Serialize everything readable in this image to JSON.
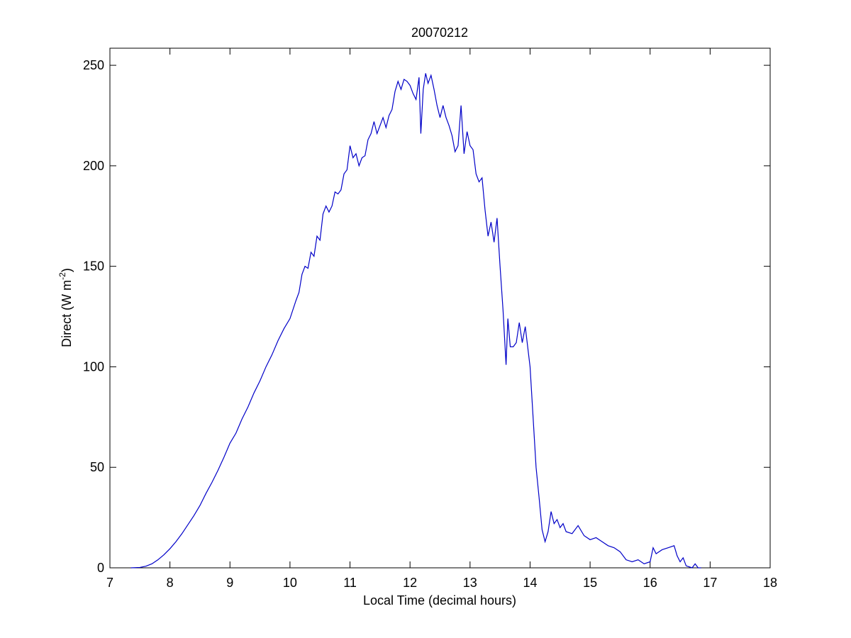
{
  "chart_data": {
    "type": "line",
    "title": "20070212",
    "x_label": "Local Time (decimal hours)",
    "y_label": {
      "text": "Direct (W m",
      "superscript": "-2",
      "suffix": ")"
    },
    "color": "#0000c8",
    "xlim": [
      7,
      18
    ],
    "xticks": [
      7,
      8,
      9,
      10,
      11,
      12,
      13,
      14,
      15,
      16,
      17,
      18
    ],
    "ylim": [
      0,
      258.5
    ],
    "yticks": [
      0,
      50,
      100,
      150,
      200,
      250
    ],
    "x": [
      7.35,
      7.5,
      7.6,
      7.7,
      7.8,
      7.9,
      8.0,
      8.1,
      8.2,
      8.3,
      8.4,
      8.5,
      8.6,
      8.7,
      8.8,
      8.9,
      9.0,
      9.1,
      9.2,
      9.3,
      9.4,
      9.5,
      9.6,
      9.7,
      9.8,
      9.9,
      10.0,
      10.1,
      10.15,
      10.2,
      10.25,
      10.3,
      10.35,
      10.4,
      10.45,
      10.5,
      10.55,
      10.6,
      10.65,
      10.7,
      10.75,
      10.8,
      10.85,
      10.9,
      10.95,
      11.0,
      11.05,
      11.1,
      11.15,
      11.2,
      11.25,
      11.3,
      11.35,
      11.4,
      11.45,
      11.5,
      11.55,
      11.6,
      11.65,
      11.7,
      11.75,
      11.8,
      11.85,
      11.9,
      11.95,
      12.0,
      12.05,
      12.1,
      12.15,
      12.18,
      12.22,
      12.26,
      12.3,
      12.35,
      12.4,
      12.45,
      12.5,
      12.55,
      12.6,
      12.65,
      12.7,
      12.75,
      12.8,
      12.85,
      12.9,
      12.95,
      13.0,
      13.05,
      13.1,
      13.15,
      13.2,
      13.25,
      13.3,
      13.35,
      13.4,
      13.45,
      13.5,
      13.55,
      13.6,
      13.63,
      13.67,
      13.72,
      13.77,
      13.82,
      13.87,
      13.92,
      13.96,
      14.0,
      14.05,
      14.1,
      14.15,
      14.2,
      14.25,
      14.3,
      14.35,
      14.4,
      14.45,
      14.5,
      14.55,
      14.6,
      14.7,
      14.8,
      14.9,
      15.0,
      15.1,
      15.2,
      15.3,
      15.4,
      15.5,
      15.6,
      15.7,
      15.8,
      15.9,
      16.0,
      16.05,
      16.1,
      16.2,
      16.3,
      16.4,
      16.45,
      16.5,
      16.55,
      16.6,
      16.7,
      16.75,
      16.8,
      16.85
    ],
    "values": [
      0,
      0.2,
      0.8,
      2,
      4,
      6.5,
      9.5,
      13,
      17,
      21.5,
      26,
      31,
      37,
      42.5,
      48.5,
      55,
      62,
      67,
      74,
      80,
      87,
      93,
      100,
      106,
      113,
      119,
      124,
      133,
      137,
      146,
      150,
      149,
      157,
      155,
      165,
      163,
      176,
      180,
      177,
      180,
      187,
      186,
      188,
      196,
      198,
      210,
      204,
      206,
      200,
      204,
      205,
      213,
      216,
      222,
      216,
      220,
      224,
      219,
      225,
      228,
      237,
      242,
      238,
      243,
      242,
      240,
      236,
      233,
      244,
      216,
      238,
      246,
      241,
      245,
      238,
      230,
      224,
      230,
      224,
      220,
      215,
      207,
      210,
      230,
      206,
      217,
      210,
      208,
      196,
      192,
      194,
      178,
      165,
      172,
      162,
      174,
      150,
      128,
      101,
      124,
      110,
      110,
      112,
      122,
      112,
      120,
      110,
      100,
      75,
      50,
      35,
      19,
      13,
      18,
      28,
      22,
      24,
      20,
      22,
      18,
      17,
      21,
      16,
      14,
      15,
      13,
      11,
      10,
      8,
      4,
      3,
      4,
      2,
      3,
      10,
      7,
      9,
      10,
      11,
      6,
      3,
      5,
      1,
      0,
      2,
      0,
      0
    ]
  }
}
